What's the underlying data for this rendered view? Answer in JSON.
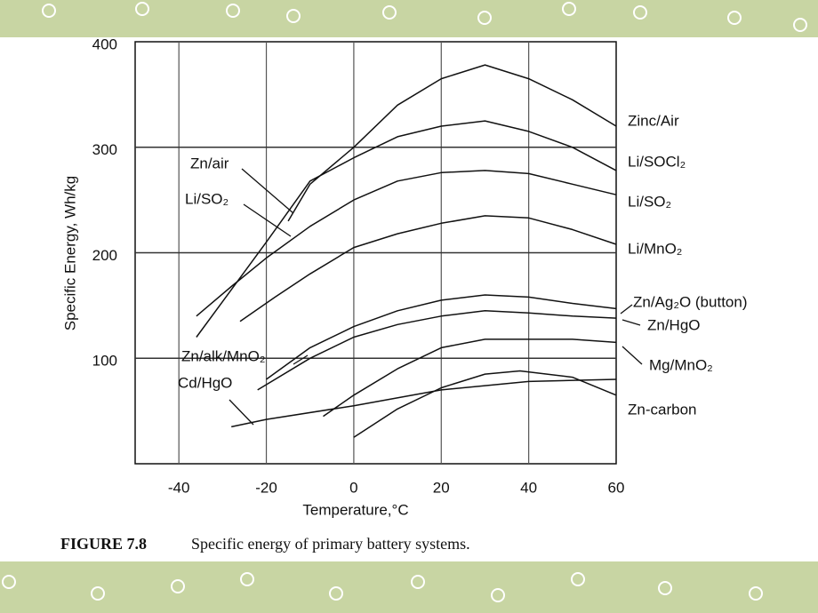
{
  "chart_data": {
    "type": "line",
    "caption_label": "FIGURE 7.8",
    "caption": "Specific energy of primary battery systems.",
    "xlabel": "Temperature,°C",
    "ylabel": "Specific Energy, Wh/kg",
    "xlim": [
      -50,
      60
    ],
    "ylim": [
      0,
      400
    ],
    "xticks": [
      -40,
      -20,
      0,
      20,
      40,
      60
    ],
    "yticks": [
      100,
      200,
      300,
      400
    ],
    "grid": true,
    "color": "#111111",
    "series": [
      {
        "name": "Zinc/Air",
        "x": [
          -15,
          -10,
          0,
          10,
          20,
          30,
          40,
          50,
          60
        ],
        "values": [
          230,
          265,
          300,
          340,
          365,
          378,
          365,
          345,
          320
        ]
      },
      {
        "name": "Li/SOCl₂",
        "x": [
          -36,
          -28,
          -20,
          -10,
          0,
          10,
          20,
          30,
          40,
          50,
          60
        ],
        "values": [
          120,
          165,
          210,
          268,
          290,
          310,
          320,
          325,
          315,
          300,
          278
        ]
      },
      {
        "name": "Li/SO₂",
        "x": [
          -36,
          -28,
          -20,
          -10,
          0,
          10,
          20,
          30,
          40,
          50,
          60
        ],
        "values": [
          140,
          168,
          195,
          225,
          250,
          268,
          276,
          278,
          275,
          265,
          255
        ]
      },
      {
        "name": "Li/MnO₂",
        "x": [
          -26,
          -18,
          -10,
          0,
          10,
          20,
          30,
          40,
          50,
          60
        ],
        "values": [
          135,
          158,
          180,
          205,
          218,
          228,
          235,
          233,
          222,
          208
        ]
      },
      {
        "name": "Zn/Ag₂O (button)",
        "x": [
          -20,
          -10,
          0,
          10,
          20,
          30,
          40,
          50,
          60
        ],
        "values": [
          80,
          110,
          130,
          145,
          155,
          160,
          158,
          152,
          147
        ]
      },
      {
        "name": "Zn/HgO",
        "x": [
          -22,
          -10,
          0,
          10,
          20,
          30,
          40,
          50,
          60
        ],
        "values": [
          70,
          100,
          120,
          132,
          140,
          145,
          143,
          140,
          138
        ]
      },
      {
        "name": "Mg/MnO₂",
        "x": [
          -7,
          0,
          10,
          20,
          30,
          40,
          50,
          60
        ],
        "values": [
          45,
          65,
          90,
          110,
          118,
          118,
          118,
          115
        ]
      },
      {
        "name": "Zn-carbon",
        "x": [
          0,
          10,
          20,
          30,
          38,
          50,
          60
        ],
        "values": [
          25,
          52,
          72,
          85,
          88,
          82,
          65
        ]
      },
      {
        "name": "Cd/HgO",
        "x": [
          -28,
          -20,
          0,
          20,
          40,
          60
        ],
        "values": [
          35,
          42,
          55,
          70,
          78,
          80
        ]
      }
    ],
    "annotations": [
      "Zn/air",
      "Li/SO₂",
      "Zn/alk/MnO₂"
    ]
  }
}
